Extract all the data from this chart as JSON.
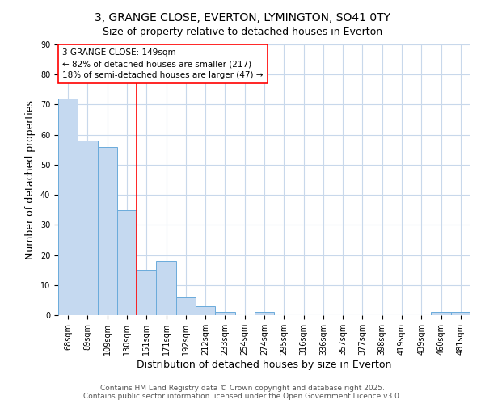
{
  "title_line1": "3, GRANGE CLOSE, EVERTON, LYMINGTON, SO41 0TY",
  "title_line2": "Size of property relative to detached houses in Everton",
  "xlabel": "Distribution of detached houses by size in Everton",
  "ylabel": "Number of detached properties",
  "categories": [
    "68sqm",
    "89sqm",
    "109sqm",
    "130sqm",
    "151sqm",
    "171sqm",
    "192sqm",
    "212sqm",
    "233sqm",
    "254sqm",
    "274sqm",
    "295sqm",
    "316sqm",
    "336sqm",
    "357sqm",
    "377sqm",
    "398sqm",
    "419sqm",
    "439sqm",
    "460sqm",
    "481sqm"
  ],
  "bar_heights": [
    72,
    58,
    56,
    35,
    15,
    18,
    6,
    3,
    1,
    0,
    1,
    0,
    0,
    0,
    0,
    0,
    0,
    0,
    0,
    1,
    1
  ],
  "bar_color": "#c5d9f0",
  "bar_edge_color": "#6aabdb",
  "vline_color": "red",
  "vline_index": 3.5,
  "annotation_text": "3 GRANGE CLOSE: 149sqm\n← 82% of detached houses are smaller (217)\n18% of semi-detached houses are larger (47) →",
  "annotation_box_facecolor": "white",
  "annotation_box_edgecolor": "red",
  "ylim": [
    0,
    90
  ],
  "yticks": [
    0,
    10,
    20,
    30,
    40,
    50,
    60,
    70,
    80,
    90
  ],
  "bg_color": "#ffffff",
  "plot_bg_color": "#ffffff",
  "grid_color": "#c8d8eb",
  "footer_line1": "Contains HM Land Registry data © Crown copyright and database right 2025.",
  "footer_line2": "Contains public sector information licensed under the Open Government Licence v3.0.",
  "title_fontsize": 10,
  "subtitle_fontsize": 9,
  "axis_label_fontsize": 9,
  "tick_fontsize": 7,
  "annotation_fontsize": 7.5,
  "footer_fontsize": 6.5
}
